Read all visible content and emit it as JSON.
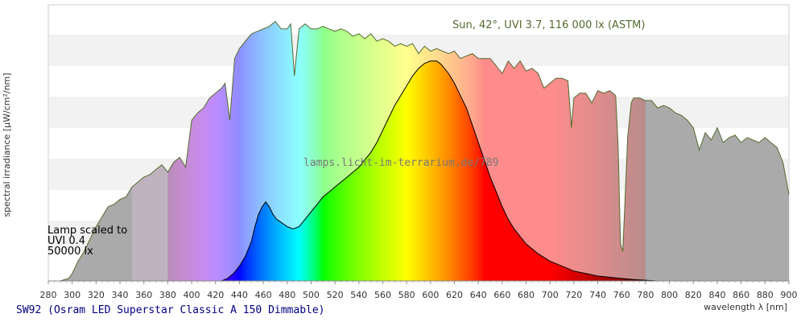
{
  "chart_data": {
    "type": "area",
    "sun_label": "Sun, 42°, UVI 3.7, 116 000 lx (ASTM)",
    "watermark": "lamps.licht-im-terrarium.de/789",
    "lamp_label": [
      "Lamp scaled to",
      "UVI 0.4",
      "50000 lx"
    ],
    "caption": "SW92 (Osram LED Superstar Classic A 150 Dimmable)",
    "ylabel": "spectral irradiance [µW/cm²/nm]",
    "xlabel": "wavelength λ [nm]",
    "xlim": [
      280,
      900
    ],
    "ylim": [
      0,
      1
    ],
    "x_ticks": [
      "280",
      "300",
      "320",
      "340",
      "360",
      "380",
      "400",
      "420",
      "440",
      "460",
      "480",
      "500",
      "520",
      "540",
      "560",
      "580",
      "600",
      "620",
      "640",
      "660",
      "680",
      "700",
      "720",
      "740",
      "760",
      "780",
      "800",
      "820",
      "840",
      "860",
      "880",
      "900"
    ],
    "grid": true,
    "colors": {
      "sun_line": "#556b2f",
      "sun_label": "#556b2f",
      "lamp_line": "#000000",
      "caption": "#000080",
      "band": "#f2f2f2"
    },
    "series": [
      {
        "name": "Sun, 42°, UVI 3.7, 116 000 lx (ASTM)",
        "x": [
          290,
          297,
          300,
          305,
          310,
          315,
          320,
          325,
          330,
          335,
          340,
          345,
          350,
          355,
          360,
          365,
          370,
          375,
          380,
          385,
          390,
          395,
          400,
          405,
          410,
          415,
          420,
          425,
          428,
          432,
          436,
          440,
          445,
          450,
          455,
          460,
          465,
          470,
          475,
          480,
          483,
          486,
          490,
          495,
          500,
          505,
          510,
          515,
          520,
          525,
          530,
          535,
          540,
          545,
          550,
          555,
          560,
          565,
          570,
          575,
          580,
          585,
          590,
          595,
          600,
          605,
          610,
          615,
          620,
          625,
          630,
          635,
          640,
          645,
          650,
          655,
          660,
          665,
          670,
          675,
          680,
          685,
          690,
          695,
          700,
          705,
          710,
          715,
          718,
          720,
          725,
          730,
          735,
          740,
          745,
          750,
          755,
          757,
          759,
          761,
          763,
          765,
          768,
          770,
          775,
          780,
          785,
          790,
          795,
          800,
          805,
          810,
          815,
          820,
          825,
          830,
          835,
          840,
          845,
          850,
          855,
          860,
          865,
          870,
          875,
          880,
          885,
          890,
          895,
          900
        ],
        "values": [
          0,
          0.01,
          0.03,
          0.08,
          0.12,
          0.17,
          0.22,
          0.26,
          0.3,
          0.31,
          0.33,
          0.34,
          0.38,
          0.4,
          0.42,
          0.43,
          0.45,
          0.47,
          0.44,
          0.48,
          0.5,
          0.46,
          0.65,
          0.68,
          0.7,
          0.74,
          0.76,
          0.78,
          0.8,
          0.65,
          0.9,
          0.94,
          0.97,
          1.0,
          1.01,
          1.02,
          1.03,
          1.05,
          1.02,
          1.02,
          1.04,
          0.83,
          1.02,
          1.04,
          1.02,
          1.02,
          1.03,
          1.02,
          1.01,
          1.02,
          1.01,
          0.99,
          1.0,
          0.98,
          1.0,
          0.97,
          0.98,
          0.97,
          0.95,
          0.96,
          0.95,
          0.96,
          0.92,
          0.95,
          0.93,
          0.94,
          0.93,
          0.92,
          0.93,
          0.9,
          0.91,
          0.92,
          0.9,
          0.9,
          0.9,
          0.87,
          0.84,
          0.89,
          0.86,
          0.89,
          0.85,
          0.86,
          0.84,
          0.78,
          0.8,
          0.82,
          0.82,
          0.81,
          0.62,
          0.74,
          0.76,
          0.76,
          0.72,
          0.77,
          0.76,
          0.77,
          0.75,
          0.55,
          0.15,
          0.12,
          0.35,
          0.58,
          0.72,
          0.74,
          0.74,
          0.73,
          0.73,
          0.7,
          0.71,
          0.7,
          0.68,
          0.67,
          0.65,
          0.62,
          0.53,
          0.6,
          0.57,
          0.62,
          0.56,
          0.58,
          0.59,
          0.56,
          0.58,
          0.57,
          0.56,
          0.58,
          0.56,
          0.54,
          0.48,
          0.35
        ]
      },
      {
        "name": "Lamp",
        "x": [
          425,
          430,
          435,
          440,
          445,
          450,
          453,
          456,
          459,
          462,
          465,
          468,
          471,
          474,
          477,
          480,
          485,
          490,
          495,
          500,
          505,
          510,
          515,
          520,
          525,
          530,
          535,
          540,
          545,
          550,
          555,
          560,
          565,
          570,
          575,
          580,
          585,
          590,
          595,
          600,
          605,
          608,
          610,
          615,
          620,
          625,
          630,
          635,
          640,
          645,
          650,
          655,
          660,
          665,
          670,
          675,
          680,
          690,
          700,
          710,
          720,
          730,
          740,
          750,
          760,
          770,
          780,
          790
        ],
        "values": [
          0,
          0.01,
          0.03,
          0.06,
          0.1,
          0.16,
          0.22,
          0.27,
          0.3,
          0.32,
          0.3,
          0.27,
          0.25,
          0.24,
          0.23,
          0.22,
          0.21,
          0.22,
          0.25,
          0.28,
          0.31,
          0.34,
          0.36,
          0.38,
          0.4,
          0.42,
          0.44,
          0.46,
          0.49,
          0.52,
          0.56,
          0.61,
          0.66,
          0.71,
          0.75,
          0.79,
          0.83,
          0.86,
          0.88,
          0.89,
          0.89,
          0.88,
          0.87,
          0.84,
          0.8,
          0.75,
          0.7,
          0.63,
          0.56,
          0.49,
          0.42,
          0.36,
          0.3,
          0.25,
          0.21,
          0.18,
          0.15,
          0.11,
          0.08,
          0.06,
          0.04,
          0.03,
          0.02,
          0.015,
          0.01,
          0.006,
          0.003,
          0
        ]
      }
    ]
  }
}
